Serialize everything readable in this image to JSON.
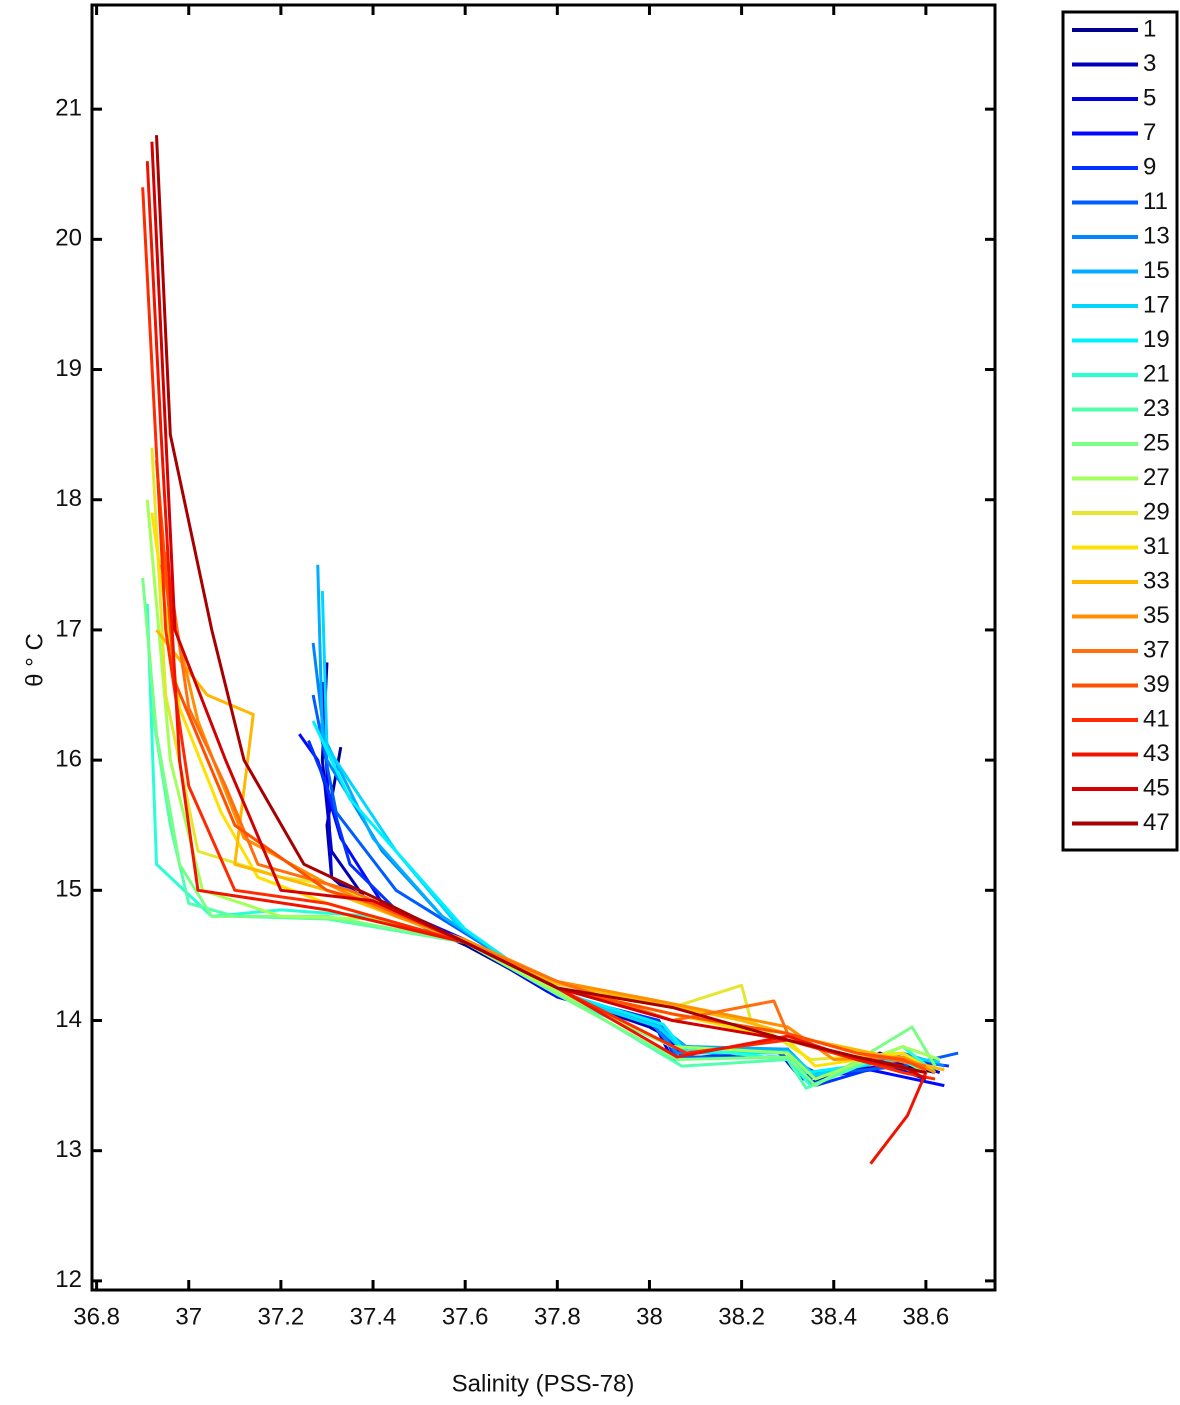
{
  "chart_data": {
    "type": "line",
    "xlabel": "Salinity (PSS-78)",
    "ylabel": "θ ° C",
    "xlim": [
      36.79,
      38.75
    ],
    "ylim": [
      11.93,
      21.8
    ],
    "xticks": [
      36.8,
      37,
      37.2,
      37.4,
      37.6,
      37.8,
      38,
      38.2,
      38.4,
      38.6
    ],
    "yticks": [
      12,
      13,
      14,
      15,
      16,
      17,
      18,
      19,
      20,
      21
    ],
    "grid": false,
    "legend": "outside-right",
    "series": [
      {
        "name": "1",
        "color": "#00008f",
        "x": [
          37.33,
          37.3,
          37.31,
          37.36,
          37.6,
          37.8,
          38.02,
          38.06,
          38.3,
          38.34,
          38.5,
          38.62
        ],
        "values": [
          16.1,
          15.5,
          15.1,
          14.95,
          14.58,
          14.2,
          14.0,
          13.75,
          13.75,
          13.55,
          13.7,
          13.6
        ]
      },
      {
        "name": "3",
        "color": "#0000b8",
        "x": [
          37.3,
          37.29,
          37.31,
          37.38,
          37.6,
          37.78,
          38.0,
          38.08,
          38.28,
          38.36,
          38.52,
          38.6
        ],
        "values": [
          16.75,
          16.0,
          15.3,
          14.95,
          14.6,
          14.22,
          13.95,
          13.8,
          13.75,
          13.6,
          13.65,
          13.55
        ]
      },
      {
        "name": "5",
        "color": "#0000e0",
        "x": [
          37.29,
          37.3,
          37.31,
          37.4,
          37.6,
          37.79,
          38.01,
          38.05,
          38.3,
          38.35,
          38.5,
          38.63
        ],
        "values": [
          16.6,
          15.9,
          15.1,
          14.9,
          14.6,
          14.2,
          13.98,
          13.7,
          13.78,
          13.52,
          13.75,
          13.6
        ]
      },
      {
        "name": "7",
        "color": "#000aff",
        "x": [
          37.24,
          37.28,
          37.33,
          37.42,
          37.6,
          37.8,
          38.03,
          38.07,
          38.29,
          38.33,
          38.48,
          38.64
        ],
        "values": [
          16.2,
          16.0,
          15.4,
          14.9,
          14.62,
          14.18,
          13.95,
          13.72,
          13.72,
          13.55,
          13.62,
          13.5
        ]
      },
      {
        "name": "9",
        "color": "#0033ff",
        "x": [
          37.26,
          37.3,
          37.35,
          37.45,
          37.6,
          37.8,
          38.02,
          38.05,
          38.3,
          38.36,
          38.55,
          38.65
        ],
        "values": [
          16.15,
          15.8,
          15.2,
          14.85,
          14.6,
          14.2,
          14.0,
          13.75,
          13.75,
          13.5,
          13.7,
          13.65
        ]
      },
      {
        "name": "11",
        "color": "#005cff",
        "x": [
          37.27,
          37.32,
          37.45,
          37.55,
          37.7,
          37.85,
          38.02,
          38.06,
          38.3,
          38.35,
          38.55,
          38.67
        ],
        "values": [
          16.5,
          15.6,
          15.0,
          14.78,
          14.45,
          14.15,
          13.98,
          13.72,
          13.72,
          13.58,
          13.65,
          13.75
        ]
      },
      {
        "name": "13",
        "color": "#0085ff",
        "x": [
          37.27,
          37.3,
          37.42,
          37.55,
          37.7,
          37.85,
          38.0,
          38.06,
          38.3,
          38.34,
          38.55,
          38.64
        ],
        "values": [
          16.9,
          16.0,
          15.3,
          14.8,
          14.45,
          14.15,
          14.0,
          13.75,
          13.75,
          13.55,
          13.75,
          13.65
        ]
      },
      {
        "name": "15",
        "color": "#00adff",
        "x": [
          37.28,
          37.29,
          37.4,
          37.55,
          37.7,
          37.82,
          38.02,
          38.08,
          38.3,
          38.35,
          38.55,
          38.62
        ],
        "values": [
          17.5,
          16.2,
          15.4,
          14.8,
          14.45,
          14.18,
          13.96,
          13.8,
          13.78,
          13.6,
          13.7,
          13.62
        ]
      },
      {
        "name": "17",
        "color": "#00d6ff",
        "x": [
          37.29,
          37.3,
          37.45,
          37.58,
          37.7,
          37.8,
          38.02,
          38.07,
          38.3,
          38.36,
          38.56,
          38.63
        ],
        "values": [
          17.3,
          16.1,
          15.3,
          14.75,
          14.45,
          14.2,
          13.95,
          13.78,
          13.76,
          13.58,
          13.72,
          13.68
        ]
      },
      {
        "name": "19",
        "color": "#00f0ff",
        "x": [
          37.27,
          37.35,
          37.5,
          37.6,
          37.7,
          37.82,
          38.03,
          38.08,
          38.3,
          38.34,
          38.55,
          38.6
        ],
        "values": [
          16.3,
          15.7,
          15.1,
          14.7,
          14.45,
          14.2,
          13.97,
          13.75,
          13.75,
          13.6,
          13.7,
          13.6
        ]
      },
      {
        "name": "21",
        "color": "#29ffd6",
        "x": [
          36.91,
          36.93,
          37.05,
          37.2,
          37.4,
          37.6,
          37.8,
          38.05,
          38.3,
          38.35,
          38.55,
          38.62
        ],
        "values": [
          17.2,
          15.2,
          14.8,
          14.85,
          14.8,
          14.6,
          14.2,
          13.8,
          13.7,
          13.5,
          13.8,
          13.6
        ]
      },
      {
        "name": "23",
        "color": "#52ffad",
        "x": [
          36.92,
          36.96,
          37.0,
          37.1,
          37.3,
          37.6,
          37.8,
          38.07,
          38.3,
          38.34,
          38.52,
          38.6
        ],
        "values": [
          16.4,
          15.5,
          14.9,
          14.8,
          14.78,
          14.6,
          14.22,
          13.65,
          13.7,
          13.48,
          13.75,
          13.6
        ]
      },
      {
        "name": "25",
        "color": "#7aff85",
        "x": [
          36.9,
          36.93,
          36.98,
          37.05,
          37.3,
          37.6,
          37.8,
          38.06,
          38.3,
          38.36,
          38.57,
          38.62
        ],
        "values": [
          17.4,
          16.2,
          15.2,
          14.8,
          14.8,
          14.6,
          14.2,
          13.7,
          13.72,
          13.5,
          13.95,
          13.65
        ]
      },
      {
        "name": "27",
        "color": "#a3ff5c",
        "x": [
          36.91,
          36.96,
          37.03,
          37.2,
          37.4,
          37.6,
          37.8,
          38.05,
          38.3,
          38.36,
          38.55,
          38.63
        ],
        "values": [
          18.0,
          16.0,
          15.0,
          14.8,
          14.78,
          14.6,
          14.22,
          13.8,
          13.75,
          13.55,
          13.8,
          13.7
        ]
      },
      {
        "name": "29",
        "color": "#e6e62e",
        "x": [
          36.92,
          36.95,
          37.02,
          37.2,
          37.3,
          37.6,
          37.8,
          38.05,
          38.2,
          38.22,
          38.35,
          38.55,
          38.6
        ],
        "values": [
          18.4,
          16.5,
          15.3,
          15.1,
          15.05,
          14.6,
          14.25,
          14.1,
          14.27,
          14.0,
          13.7,
          13.75,
          13.6
        ]
      },
      {
        "name": "31",
        "color": "#ffe000",
        "x": [
          36.92,
          36.98,
          37.07,
          37.15,
          37.3,
          37.6,
          37.8,
          38.05,
          38.3,
          38.36,
          38.55,
          38.62
        ],
        "values": [
          17.9,
          16.4,
          15.6,
          15.1,
          14.9,
          14.6,
          14.25,
          14.05,
          13.85,
          13.65,
          13.75,
          13.6
        ]
      },
      {
        "name": "33",
        "color": "#ffb800",
        "x": [
          36.93,
          37.04,
          37.14,
          37.1,
          37.3,
          37.6,
          37.8,
          38.0,
          38.2,
          38.35,
          38.55,
          38.64
        ],
        "values": [
          17.0,
          16.5,
          16.35,
          15.2,
          15.0,
          14.6,
          14.28,
          14.15,
          14.0,
          13.85,
          13.7,
          13.62
        ]
      },
      {
        "name": "35",
        "color": "#ff8f00",
        "x": [
          36.94,
          37.02,
          37.12,
          37.3,
          37.45,
          37.6,
          37.8,
          38.02,
          38.3,
          38.4,
          38.55,
          38.62
        ],
        "values": [
          17.5,
          16.3,
          15.4,
          15.05,
          14.8,
          14.62,
          14.3,
          14.15,
          13.95,
          13.7,
          13.72,
          13.6
        ]
      },
      {
        "name": "37",
        "color": "#ff6f10",
        "x": [
          36.95,
          37.0,
          37.08,
          37.15,
          37.35,
          37.6,
          37.8,
          38.05,
          38.27,
          38.3,
          38.45,
          38.6
        ],
        "values": [
          17.6,
          16.4,
          15.8,
          15.2,
          15.0,
          14.6,
          14.3,
          14.0,
          14.15,
          13.9,
          13.75,
          13.65
        ]
      },
      {
        "name": "39",
        "color": "#ff5000",
        "x": [
          36.93,
          36.97,
          37.1,
          37.3,
          37.4,
          37.6,
          37.8,
          38.05,
          38.3,
          38.45,
          38.55,
          38.6
        ],
        "values": [
          18.3,
          16.6,
          15.5,
          15.0,
          14.9,
          14.6,
          14.25,
          14.05,
          13.9,
          13.75,
          13.7,
          13.62
        ]
      },
      {
        "name": "41",
        "color": "#ff2a00",
        "x": [
          36.9,
          36.95,
          37.0,
          37.1,
          37.3,
          37.6,
          37.8,
          38.08,
          38.3,
          38.45,
          38.55,
          38.62
        ],
        "values": [
          20.4,
          17.0,
          15.8,
          15.0,
          14.9,
          14.6,
          14.25,
          13.75,
          13.85,
          13.7,
          13.6,
          13.55
        ]
      },
      {
        "name": "43",
        "color": "#f01400",
        "x": [
          36.91,
          36.94,
          36.98,
          37.02,
          37.3,
          37.6,
          37.8,
          38.06,
          38.3,
          38.45,
          38.6,
          38.56,
          38.48
        ],
        "values": [
          20.6,
          18.5,
          16.0,
          15.0,
          14.85,
          14.6,
          14.25,
          13.72,
          13.88,
          13.7,
          13.6,
          13.27,
          12.9
        ]
      },
      {
        "name": "45",
        "color": "#d20000",
        "x": [
          36.92,
          36.97,
          37.08,
          37.2,
          37.4,
          37.6,
          37.8,
          38.05,
          38.3,
          38.45,
          38.55,
          38.6
        ],
        "values": [
          20.75,
          17.0,
          16.0,
          15.0,
          14.92,
          14.6,
          14.25,
          14.0,
          13.85,
          13.72,
          13.65,
          13.55
        ]
      },
      {
        "name": "47",
        "color": "#a80000",
        "x": [
          36.93,
          36.96,
          37.05,
          37.12,
          37.25,
          37.4,
          37.6,
          37.8,
          38.05,
          38.3,
          38.45,
          38.6
        ],
        "values": [
          20.8,
          18.5,
          17.0,
          16.0,
          15.2,
          14.95,
          14.6,
          14.25,
          14.1,
          13.85,
          13.72,
          13.6
        ]
      }
    ]
  }
}
